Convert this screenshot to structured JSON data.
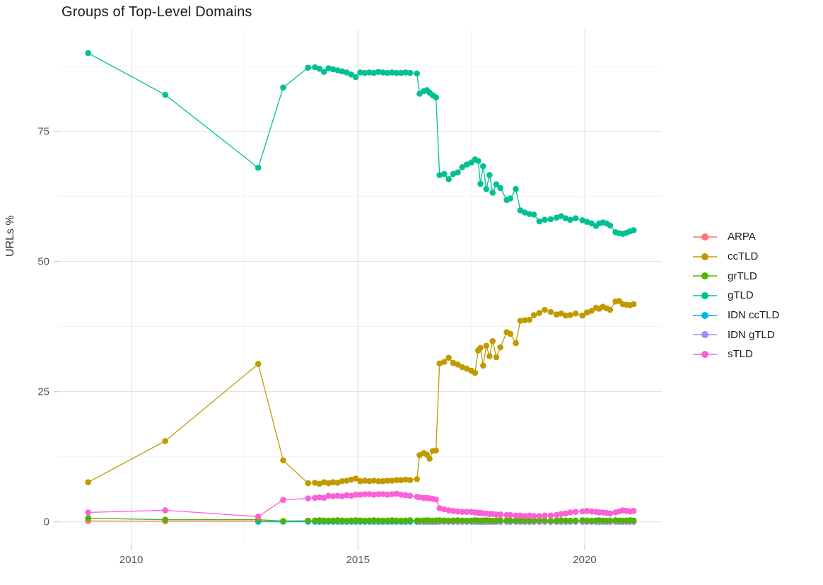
{
  "chart_data": {
    "type": "line",
    "title": "Groups of Top-Level Domains",
    "xlabel": "",
    "ylabel": "URLs %",
    "x_ticks": [
      2010,
      2015,
      2020
    ],
    "x_minor": [
      2012.5,
      2017.5
    ],
    "y_ticks": [
      0,
      25,
      50,
      75
    ],
    "y_minor": [
      12.5,
      37.5,
      62.5,
      87.5
    ],
    "xlim": [
      2008.4,
      2021.7
    ],
    "ylim": [
      -4.4,
      94.5
    ],
    "grid": true,
    "legend_position": "right",
    "x_dense": [
      2013.9,
      2014.05,
      2014.15,
      2014.25,
      2014.35,
      2014.45,
      2014.55,
      2014.65,
      2014.75,
      2014.85,
      2014.95,
      2015.05,
      2015.15,
      2015.25,
      2015.35,
      2015.45,
      2015.55,
      2015.65,
      2015.75,
      2015.85,
      2015.95,
      2016.05,
      2016.15,
      2016.3,
      2016.36,
      2016.45,
      2016.52,
      2016.58,
      2016.65,
      2016.72,
      2016.8,
      2016.9,
      2017.0,
      2017.1,
      2017.2,
      2017.3,
      2017.4,
      2017.5,
      2017.58,
      2017.65,
      2017.7,
      2017.76,
      2017.83,
      2017.9,
      2017.97,
      2018.05,
      2018.14,
      2018.28,
      2018.36,
      2018.48,
      2018.58,
      2018.68,
      2018.78,
      2018.88,
      2019.0,
      2019.12,
      2019.25,
      2019.38,
      2019.48,
      2019.58,
      2019.68,
      2019.8,
      2019.95,
      2020.05,
      2020.15,
      2020.25,
      2020.32,
      2020.4,
      2020.48,
      2020.56,
      2020.68,
      2020.76,
      2020.84,
      2020.92,
      2021.0,
      2021.08
    ],
    "series": [
      {
        "name": "ARPA",
        "color": "#F8766D",
        "sparse_points": [
          [
            2009.05,
            0.15
          ],
          [
            2010.75,
            0.1
          ],
          [
            2012.8,
            0.1
          ],
          [
            2013.35,
            0.05
          ],
          [
            2013.9,
            0.05
          ]
        ]
      },
      {
        "name": "ccTLD",
        "color": "#C19A00",
        "sparse_points": [
          [
            2009.05,
            7.6
          ],
          [
            2010.75,
            15.5
          ],
          [
            2012.8,
            30.3
          ],
          [
            2013.35,
            11.8
          ]
        ],
        "dense_values": [
          7.4,
          7.5,
          7.3,
          7.6,
          7.4,
          7.6,
          7.5,
          7.8,
          7.9,
          8.1,
          8.3,
          7.8,
          7.9,
          7.8,
          7.9,
          7.8,
          7.8,
          7.9,
          7.9,
          8.0,
          8.0,
          8.1,
          8.0,
          8.2,
          12.8,
          13.2,
          12.9,
          12.1,
          13.6,
          13.7,
          30.4,
          30.7,
          31.5,
          30.5,
          30.2,
          29.7,
          29.4,
          29.0,
          28.6,
          32.9,
          33.4,
          30.0,
          33.8,
          31.8,
          34.7,
          31.6,
          33.5,
          36.4,
          36.1,
          34.3,
          38.6,
          38.7,
          38.8,
          39.7,
          40.1,
          40.7,
          40.3,
          39.8,
          40.0,
          39.6,
          39.7,
          40.0,
          39.6,
          40.2,
          40.5,
          41.1,
          40.9,
          41.3,
          41.0,
          40.7,
          42.3,
          42.4,
          41.8,
          41.7,
          41.6,
          41.8
        ]
      },
      {
        "name": "grTLD",
        "color": "#53B400",
        "sparse_points": [
          [
            2009.05,
            0.7
          ],
          [
            2010.75,
            0.4
          ],
          [
            2012.8,
            0.4
          ],
          [
            2013.35,
            0.15
          ]
        ],
        "dense_values": [
          0.2,
          0.25,
          0.3,
          0.25,
          0.2,
          0.25,
          0.3,
          0.25,
          0.2,
          0.25,
          0.3,
          0.25,
          0.2,
          0.25,
          0.3,
          0.25,
          0.2,
          0.25,
          0.3,
          0.25,
          0.2,
          0.25,
          0.3,
          0.25,
          0.2,
          0.25,
          0.3,
          0.25,
          0.2,
          0.25,
          0.3,
          0.25,
          0.2,
          0.25,
          0.3,
          0.25,
          0.2,
          0.25,
          0.3,
          0.25,
          0.2,
          0.25,
          0.3,
          0.25,
          0.2,
          0.25,
          0.3,
          0.25,
          0.2,
          0.25,
          0.3,
          0.25,
          0.2,
          0.25,
          0.3,
          0.25,
          0.2,
          0.25,
          0.3,
          0.25,
          0.2,
          0.25,
          0.3,
          0.25,
          0.2,
          0.25,
          0.3,
          0.25,
          0.2,
          0.25,
          0.3,
          0.25,
          0.2,
          0.25,
          0.3,
          0.25
        ]
      },
      {
        "name": "gTLD",
        "color": "#00C094",
        "sparse_points": [
          [
            2009.05,
            90.0
          ],
          [
            2010.75,
            82.0
          ],
          [
            2012.8,
            68.0
          ],
          [
            2013.35,
            83.4
          ]
        ],
        "dense_values": [
          87.2,
          87.3,
          87.0,
          86.4,
          87.1,
          86.9,
          86.7,
          86.5,
          86.3,
          85.9,
          85.4,
          86.3,
          86.2,
          86.3,
          86.2,
          86.4,
          86.3,
          86.2,
          86.3,
          86.2,
          86.2,
          86.3,
          86.2,
          86.1,
          82.2,
          82.7,
          82.9,
          82.4,
          81.9,
          81.5,
          66.6,
          66.8,
          65.8,
          66.8,
          67.1,
          68.1,
          68.6,
          69.0,
          69.6,
          69.3,
          64.9,
          68.3,
          63.9,
          66.6,
          63.2,
          64.8,
          64.1,
          61.8,
          62.1,
          63.9,
          59.8,
          59.4,
          59.1,
          59.0,
          57.7,
          58.0,
          58.1,
          58.4,
          58.7,
          58.3,
          58.0,
          58.3,
          57.9,
          57.6,
          57.3,
          56.8,
          57.3,
          57.5,
          57.3,
          56.9,
          55.6,
          55.4,
          55.3,
          55.5,
          55.8,
          56.0
        ]
      },
      {
        "name": "IDN ccTLD",
        "color": "#00B6EB",
        "sparse_points": [
          [
            2012.8,
            0
          ],
          [
            2013.35,
            0
          ]
        ],
        "dense_fill": 0
      },
      {
        "name": "IDN gTLD",
        "color": "#A58AFF",
        "dense_start_index": 24,
        "dense_fill": 0
      },
      {
        "name": "sTLD",
        "color": "#FB61D7",
        "sparse_points": [
          [
            2009.05,
            1.8
          ],
          [
            2010.75,
            2.2
          ],
          [
            2012.8,
            1.0
          ],
          [
            2013.35,
            4.2
          ]
        ],
        "dense_values": [
          4.5,
          4.6,
          4.7,
          4.6,
          5.0,
          4.9,
          5.0,
          4.9,
          5.1,
          5.0,
          5.2,
          5.2,
          5.3,
          5.3,
          5.2,
          5.3,
          5.3,
          5.2,
          5.3,
          5.4,
          5.2,
          5.1,
          5.0,
          4.8,
          4.7,
          4.6,
          4.6,
          4.5,
          4.4,
          4.3,
          2.6,
          2.4,
          2.2,
          2.1,
          2.0,
          1.9,
          1.9,
          1.9,
          1.8,
          1.7,
          1.7,
          1.6,
          1.6,
          1.5,
          1.5,
          1.4,
          1.4,
          1.3,
          1.3,
          1.2,
          1.2,
          1.1,
          1.2,
          1.1,
          1.1,
          1.2,
          1.2,
          1.3,
          1.5,
          1.6,
          1.8,
          1.9,
          2.0,
          2.1,
          2.0,
          1.9,
          1.8,
          1.8,
          1.7,
          1.6,
          1.8,
          2.0,
          2.2,
          2.1,
          2.0,
          2.1
        ]
      }
    ],
    "draw_order": [
      "ARPA",
      "IDN ccTLD",
      "IDN gTLD",
      "grTLD",
      "sTLD",
      "ccTLD",
      "gTLD"
    ]
  },
  "style": {
    "grid_major_color": "#e4e4e4",
    "grid_minor_color": "#f0f0f0",
    "tick_color": "#cfcfcf",
    "tick_label_color": "#565656",
    "point_radius": 4.3,
    "line_width": 1.3
  }
}
